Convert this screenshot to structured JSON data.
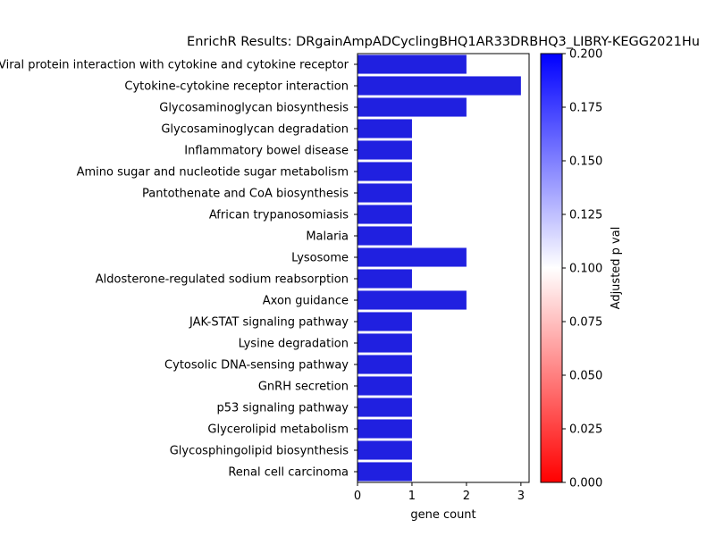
{
  "chart_data": {
    "type": "bar",
    "orientation": "horizontal",
    "title": "EnrichR Results: DRgainAmpADCyclingBHQ1AR33DRBHQ3_LIBRY-KEGG2021Hu",
    "xlabel": "gene count",
    "ylabel": "",
    "xlim": [
      0,
      3.15
    ],
    "xticks": [
      "0",
      "1",
      "2",
      "3"
    ],
    "categories": [
      "Viral protein interaction with cytokine and cytokine receptor",
      "Cytokine-cytokine receptor interaction",
      "Glycosaminoglycan biosynthesis",
      "Glycosaminoglycan degradation",
      "Inflammatory bowel disease",
      "Amino sugar and nucleotide sugar metabolism",
      "Pantothenate and CoA biosynthesis",
      "African trypanosomiasis",
      "Malaria",
      "Lysosome",
      "Aldosterone-regulated sodium reabsorption",
      "Axon guidance",
      "JAK-STAT signaling pathway",
      "Lysine degradation",
      "Cytosolic DNA-sensing pathway",
      "GnRH secretion",
      "p53 signaling pathway",
      "Glycerolipid metabolism",
      "Glycosphingolipid biosynthesis",
      "Renal cell carcinoma"
    ],
    "values": [
      2,
      3,
      2,
      1,
      1,
      1,
      1,
      1,
      1,
      2,
      1,
      2,
      1,
      1,
      1,
      1,
      1,
      1,
      1,
      1
    ],
    "bar_color": "#2020e0",
    "colorbar": {
      "label": "Adjusted p val",
      "range": [
        0,
        0.2
      ],
      "ticks": [
        "0.000",
        "0.025",
        "0.050",
        "0.075",
        "0.100",
        "0.125",
        "0.150",
        "0.175",
        "0.200"
      ],
      "colors": [
        "#ff0000",
        "#ffffff",
        "#0000ff"
      ]
    }
  }
}
